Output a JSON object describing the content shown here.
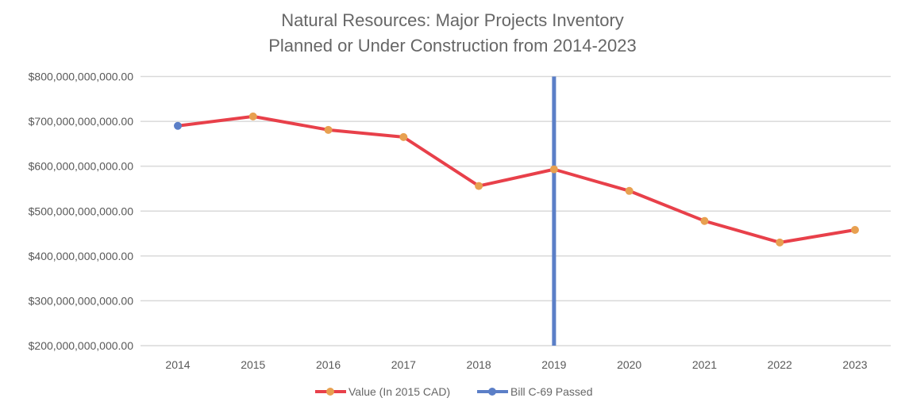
{
  "chart_data": {
    "type": "line",
    "title": [
      "Natural Resources: Major Projects Inventory",
      "Planned or Under Construction from 2014-2023"
    ],
    "xlabel": "",
    "ylabel": "",
    "categories": [
      "2014",
      "2015",
      "2016",
      "2017",
      "2018",
      "2019",
      "2020",
      "2021",
      "2022",
      "2023"
    ],
    "ylim": [
      200000000000,
      800000000000
    ],
    "yticks": [
      200000000000,
      300000000000,
      400000000000,
      500000000000,
      600000000000,
      700000000000,
      800000000000
    ],
    "ytick_labels": [
      "$200,000,000,000.00",
      "$300,000,000,000.00",
      "$400,000,000,000.00",
      "$500,000,000,000.00",
      "$600,000,000,000.00",
      "$700,000,000,000.00",
      "$800,000,000,000.00"
    ],
    "grid": "horizontal",
    "legend_position": "bottom",
    "series": [
      {
        "name": "Value (In 2015 CAD)",
        "color": "#e8404a",
        "marker_color": "#e8a050",
        "values": [
          690000000000,
          711000000000,
          681000000000,
          665000000000,
          556000000000,
          593000000000,
          545000000000,
          478000000000,
          430000000000,
          458000000000
        ]
      },
      {
        "name": "Bill C-69 Passed",
        "color": "#5b7fc7",
        "marker_color": "#5b7fc7",
        "vertical_line_at": "2019",
        "vertical_line_range": [
          200000000000,
          800000000000
        ]
      }
    ]
  }
}
